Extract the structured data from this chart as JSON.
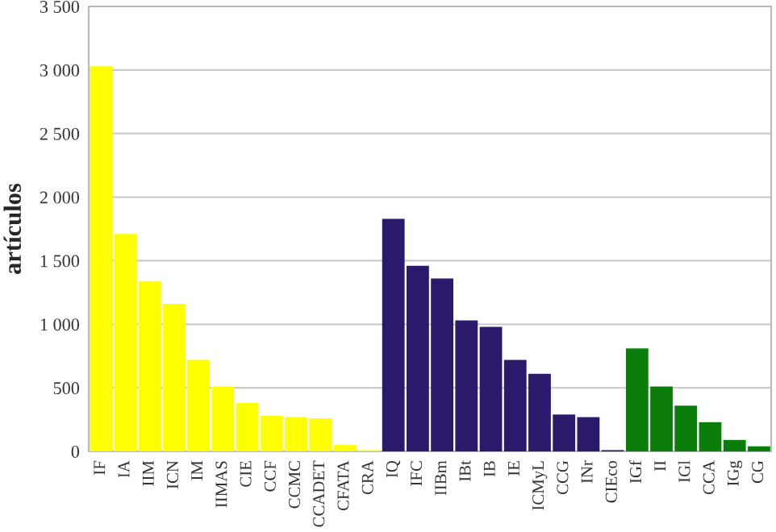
{
  "chart_data": {
    "type": "bar",
    "ylabel": "artículos",
    "categories": [
      "IF",
      "IA",
      "IIM",
      "ICN",
      "IM",
      "IIMAS",
      "CIE",
      "CCF",
      "CCMC",
      "CCADET",
      "CFATA",
      "CRA",
      "IQ",
      "IFC",
      "IIBm",
      "IBt",
      "IB",
      "IE",
      "ICMyL",
      "CCG",
      "INr",
      "CIEco",
      "IGf",
      "II",
      "IGl",
      "CCA",
      "IGg",
      "CG"
    ],
    "values": [
      3030,
      1710,
      1340,
      1160,
      720,
      510,
      380,
      280,
      270,
      260,
      50,
      10,
      1830,
      1460,
      1360,
      1030,
      980,
      720,
      610,
      290,
      270,
      10,
      810,
      510,
      360,
      230,
      90,
      40
    ],
    "colors": [
      "#ffff00",
      "#ffff00",
      "#ffff00",
      "#ffff00",
      "#ffff00",
      "#ffff00",
      "#ffff00",
      "#ffff00",
      "#ffff00",
      "#ffff00",
      "#ffff00",
      "#ffff00",
      "#2b1a6b",
      "#2b1a6b",
      "#2b1a6b",
      "#2b1a6b",
      "#2b1a6b",
      "#2b1a6b",
      "#2b1a6b",
      "#2b1a6b",
      "#2b1a6b",
      "#2b1a6b",
      "#0b7d0b",
      "#0b7d0b",
      "#0b7d0b",
      "#0b7d0b",
      "#0b7d0b",
      "#0b7d0b"
    ],
    "ylim": [
      0,
      3500
    ],
    "yticks": [
      0,
      500,
      {
        "value": 1000,
        "label": "1 000"
      },
      {
        "value": 1500,
        "label": "1 500"
      },
      {
        "value": 2000,
        "label": "2 000"
      },
      {
        "value": 2500,
        "label": "2 500"
      },
      {
        "value": 3000,
        "label": "3 000"
      },
      {
        "value": 3500,
        "label": "3 500"
      }
    ],
    "grid": "y"
  }
}
